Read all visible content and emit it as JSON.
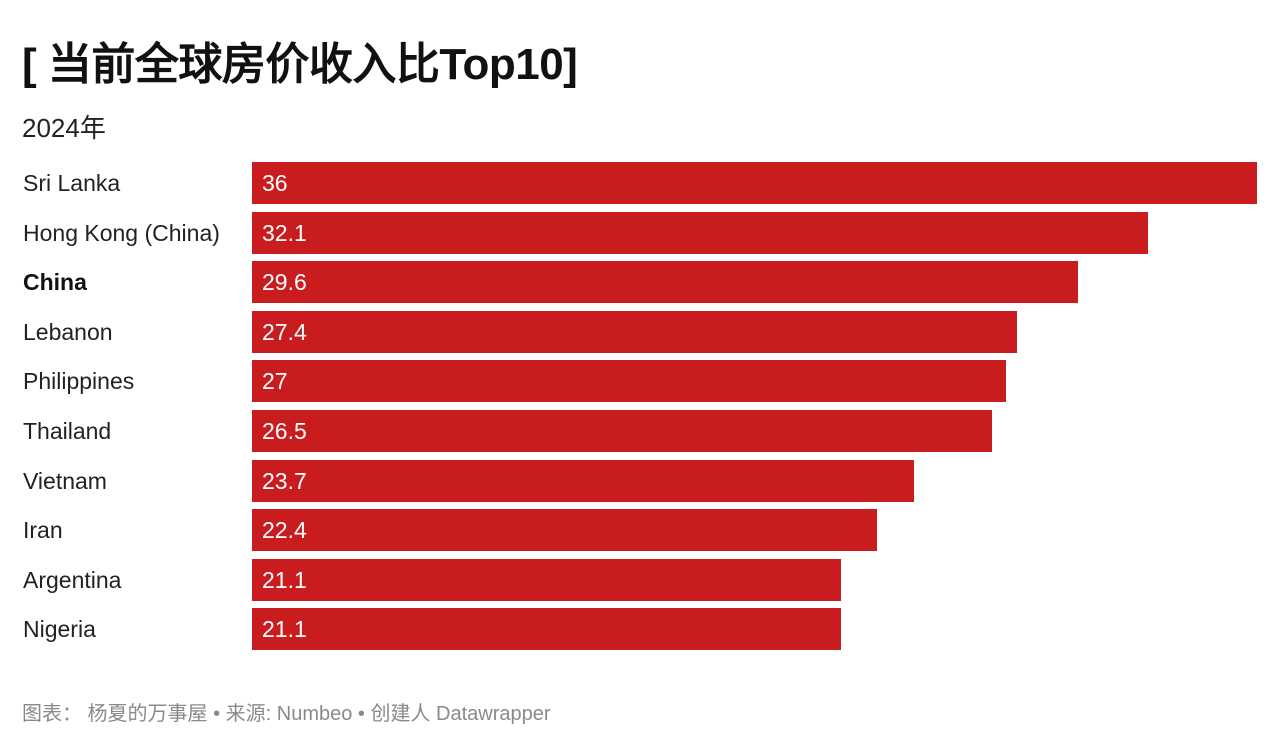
{
  "title": "[ 当前全球房价收入比Top10]",
  "subtitle": "2024年",
  "footer": "图表： 杨夏的万事屋 • 来源: Numbeo • 创建人 Datawrapper",
  "colors": {
    "bar": "#c81c1f",
    "value_text": "#ffffff",
    "footer": "#8a8a8a"
  },
  "chart_data": {
    "type": "bar",
    "orientation": "horizontal",
    "categories": [
      "Sri Lanka",
      "Hong Kong (China)",
      "China",
      "Lebanon",
      "Philippines",
      "Thailand",
      "Vietnam",
      "Iran",
      "Argentina",
      "Nigeria"
    ],
    "values": [
      36,
      32.1,
      29.6,
      27.4,
      27,
      26.5,
      23.7,
      22.4,
      21.1,
      21.1
    ],
    "value_labels": [
      "36",
      "32.1",
      "29.6",
      "27.4",
      "27",
      "26.5",
      "23.7",
      "22.4",
      "21.1",
      "21.1"
    ],
    "highlighted": [
      "China"
    ],
    "xlim": [
      0,
      36
    ],
    "grid": false,
    "legend": "none"
  }
}
